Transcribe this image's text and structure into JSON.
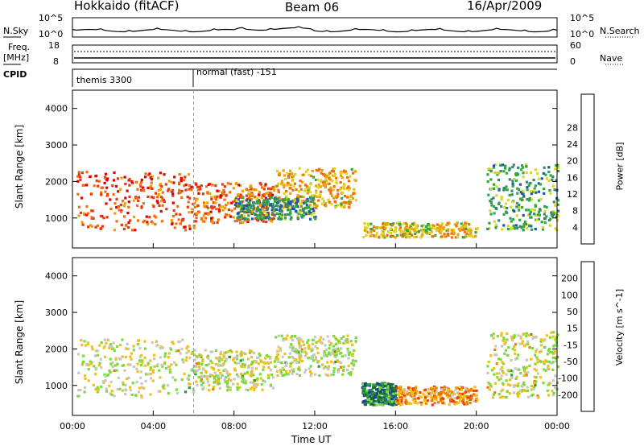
{
  "header": {
    "station": "Hokkaido (fitACF)",
    "beam": "Beam 06",
    "date": "16/Apr/2009"
  },
  "panels": {
    "nsky_label": "N.Sky",
    "nsearch_label": "N.Search",
    "freq_label": "Freq.",
    "freq_unit": "[MHz]",
    "nave_label": "Nave",
    "cpid_label": "CPID",
    "noise_ticks_left": [
      "10^5",
      "10^0"
    ],
    "noise_ticks_right": [
      "10^5",
      "10^0"
    ],
    "freq_ticks": [
      "18",
      "8"
    ],
    "nave_ticks": [
      "60",
      "0"
    ],
    "cpid_segments": [
      {
        "start_hour": 0,
        "label": "themis 3300"
      },
      {
        "start_hour": 6,
        "label": "normal (fast) -151"
      }
    ]
  },
  "xaxis": {
    "label": "Time UT",
    "ticks": [
      "00:00",
      "04:00",
      "08:00",
      "12:00",
      "16:00",
      "20:00",
      "00:00"
    ],
    "tick_hours": [
      0,
      4,
      8,
      12,
      16,
      20,
      24
    ]
  },
  "chart_data": [
    {
      "type": "heatmap",
      "name": "power",
      "ylabel": "Slant Range [km]",
      "yticks": [
        "1000",
        "2000",
        "3000",
        "4000"
      ],
      "ytick_values": [
        1000,
        2000,
        3000,
        4000
      ],
      "ylim": [
        180,
        4500
      ],
      "xlim": [
        0,
        24
      ],
      "colorbar": {
        "label": "Power [dB]",
        "ticks": [
          "4",
          "8",
          "12",
          "16",
          "20",
          "24",
          "28"
        ],
        "colors": [
          "#1010d8",
          "#2255a8",
          "#3a8a6a",
          "#2eaa3e",
          "#d8d820",
          "#f0a000",
          "#f07010",
          "#e83818",
          "#e00000"
        ]
      },
      "regions": [
        {
          "t0": 0.2,
          "t1": 6,
          "r0": 700,
          "r1": 2300,
          "level": 0.8
        },
        {
          "t0": 6,
          "t1": 10,
          "r0": 900,
          "r1": 2000,
          "level": 0.75
        },
        {
          "t0": 10,
          "t1": 14,
          "r0": 1300,
          "r1": 2400,
          "level": 0.6
        },
        {
          "t0": 8,
          "t1": 12,
          "r0": 1000,
          "r1": 1600,
          "level": 0.3
        },
        {
          "t0": 14.3,
          "t1": 20,
          "r0": 500,
          "r1": 900,
          "level": 0.55
        },
        {
          "t0": 20.5,
          "t1": 24,
          "r0": 700,
          "r1": 2500,
          "level": 0.35
        }
      ]
    },
    {
      "type": "heatmap",
      "name": "velocity",
      "ylabel": "Slant Range [km]",
      "yticks": [
        "1000",
        "2000",
        "3000",
        "4000"
      ],
      "ytick_values": [
        1000,
        2000,
        3000,
        4000
      ],
      "ylim": [
        180,
        4500
      ],
      "xlim": [
        0,
        24
      ],
      "colorbar": {
        "label": "Velocity [m s^-1]",
        "ticks": [
          "200",
          "100",
          "50",
          "15",
          "-15",
          "-50",
          "-100",
          "-200"
        ],
        "colors": [
          "#1a3aa8",
          "#1a6a3a",
          "#2a9a3a",
          "#7adc3a",
          "#c8c8c0",
          "#f0c020",
          "#f08000",
          "#f04000",
          "#e00000"
        ]
      },
      "regions": [
        {
          "t0": 0.2,
          "t1": 6,
          "r0": 700,
          "r1": 2300,
          "level": 0.5
        },
        {
          "t0": 6,
          "t1": 10,
          "r0": 900,
          "r1": 2000,
          "level": 0.5
        },
        {
          "t0": 10,
          "t1": 14,
          "r0": 1300,
          "r1": 2400,
          "level": 0.5
        },
        {
          "t0": 14.3,
          "t1": 16,
          "r0": 500,
          "r1": 1100,
          "level": 0.2
        },
        {
          "t0": 16,
          "t1": 20,
          "r0": 500,
          "r1": 1000,
          "level": 0.7
        },
        {
          "t0": 20.5,
          "t1": 24,
          "r0": 700,
          "r1": 2500,
          "level": 0.5
        }
      ]
    }
  ]
}
